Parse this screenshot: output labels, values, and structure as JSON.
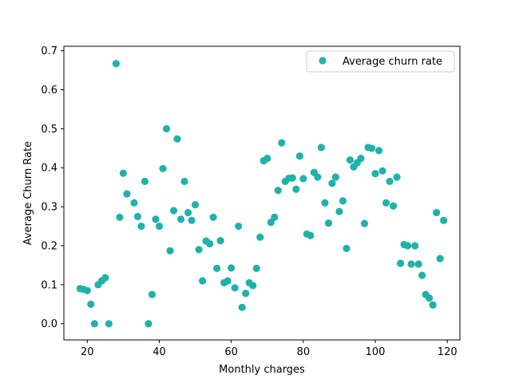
{
  "chart_data": {
    "type": "scatter",
    "title": "",
    "xlabel": "Monthly charges",
    "ylabel": "Average Churn Rate",
    "xlim": [
      13.5,
      123.5
    ],
    "ylim": [
      -0.0415,
      0.7115
    ],
    "xticks": [
      20,
      40,
      60,
      80,
      100,
      120
    ],
    "yticks": [
      0.0,
      0.1,
      0.2,
      0.3,
      0.4,
      0.5,
      0.6,
      0.7
    ],
    "xtick_labels": [
      "20",
      "40",
      "60",
      "80",
      "100",
      "120"
    ],
    "ytick_labels": [
      "0.0",
      "0.1",
      "0.2",
      "0.3",
      "0.4",
      "0.5",
      "0.6",
      "0.7"
    ],
    "grid": false,
    "legend_position": "top-right",
    "color": "#20b2aa",
    "series": [
      {
        "name": "Average churn rate",
        "points": [
          [
            18,
            0.09
          ],
          [
            19,
            0.088
          ],
          [
            20,
            0.085
          ],
          [
            21,
            0.05
          ],
          [
            22,
            0.0
          ],
          [
            23,
            0.1
          ],
          [
            24,
            0.11
          ],
          [
            25,
            0.118
          ],
          [
            26,
            0.0
          ],
          [
            28,
            0.667
          ],
          [
            29,
            0.273
          ],
          [
            30,
            0.386
          ],
          [
            31,
            0.333
          ],
          [
            33,
            0.31
          ],
          [
            34,
            0.275
          ],
          [
            35,
            0.25
          ],
          [
            36,
            0.365
          ],
          [
            37,
            0.0
          ],
          [
            38,
            0.075
          ],
          [
            39,
            0.268
          ],
          [
            40,
            0.25
          ],
          [
            41,
            0.398
          ],
          [
            42,
            0.5
          ],
          [
            43,
            0.187
          ],
          [
            44,
            0.29
          ],
          [
            45,
            0.474
          ],
          [
            46,
            0.268
          ],
          [
            47,
            0.365
          ],
          [
            48,
            0.285
          ],
          [
            49,
            0.265
          ],
          [
            50,
            0.305
          ],
          [
            51,
            0.19
          ],
          [
            52,
            0.11
          ],
          [
            53,
            0.212
          ],
          [
            54,
            0.205
          ],
          [
            55,
            0.273
          ],
          [
            56,
            0.142
          ],
          [
            57,
            0.213
          ],
          [
            58,
            0.105
          ],
          [
            59,
            0.11
          ],
          [
            60,
            0.143
          ],
          [
            61,
            0.092
          ],
          [
            62,
            0.25
          ],
          [
            63,
            0.042
          ],
          [
            64,
            0.078
          ],
          [
            65,
            0.105
          ],
          [
            66,
            0.098
          ],
          [
            67,
            0.142
          ],
          [
            68,
            0.222
          ],
          [
            69,
            0.418
          ],
          [
            70,
            0.424
          ],
          [
            71,
            0.26
          ],
          [
            72,
            0.273
          ],
          [
            73,
            0.342
          ],
          [
            74,
            0.464
          ],
          [
            75,
            0.365
          ],
          [
            76,
            0.373
          ],
          [
            77,
            0.374
          ],
          [
            78,
            0.345
          ],
          [
            79,
            0.43
          ],
          [
            80,
            0.372
          ],
          [
            81,
            0.23
          ],
          [
            82,
            0.226
          ],
          [
            83,
            0.388
          ],
          [
            84,
            0.376
          ],
          [
            85,
            0.452
          ],
          [
            86,
            0.31
          ],
          [
            87,
            0.258
          ],
          [
            88,
            0.36
          ],
          [
            89,
            0.376
          ],
          [
            90,
            0.288
          ],
          [
            91,
            0.315
          ],
          [
            92,
            0.193
          ],
          [
            93,
            0.42
          ],
          [
            94,
            0.402
          ],
          [
            95,
            0.413
          ],
          [
            96,
            0.424
          ],
          [
            97,
            0.257
          ],
          [
            98,
            0.452
          ],
          [
            99,
            0.45
          ],
          [
            100,
            0.385
          ],
          [
            101,
            0.444
          ],
          [
            102,
            0.392
          ],
          [
            103,
            0.31
          ],
          [
            104,
            0.365
          ],
          [
            105,
            0.302
          ],
          [
            106,
            0.376
          ],
          [
            107,
            0.155
          ],
          [
            108,
            0.203
          ],
          [
            109,
            0.2
          ],
          [
            110,
            0.153
          ],
          [
            111,
            0.2
          ],
          [
            112,
            0.153
          ],
          [
            113,
            0.124
          ],
          [
            114,
            0.075
          ],
          [
            115,
            0.066
          ],
          [
            116,
            0.048
          ],
          [
            117,
            0.285
          ],
          [
            118,
            0.167
          ],
          [
            119,
            0.265
          ]
        ]
      }
    ]
  }
}
